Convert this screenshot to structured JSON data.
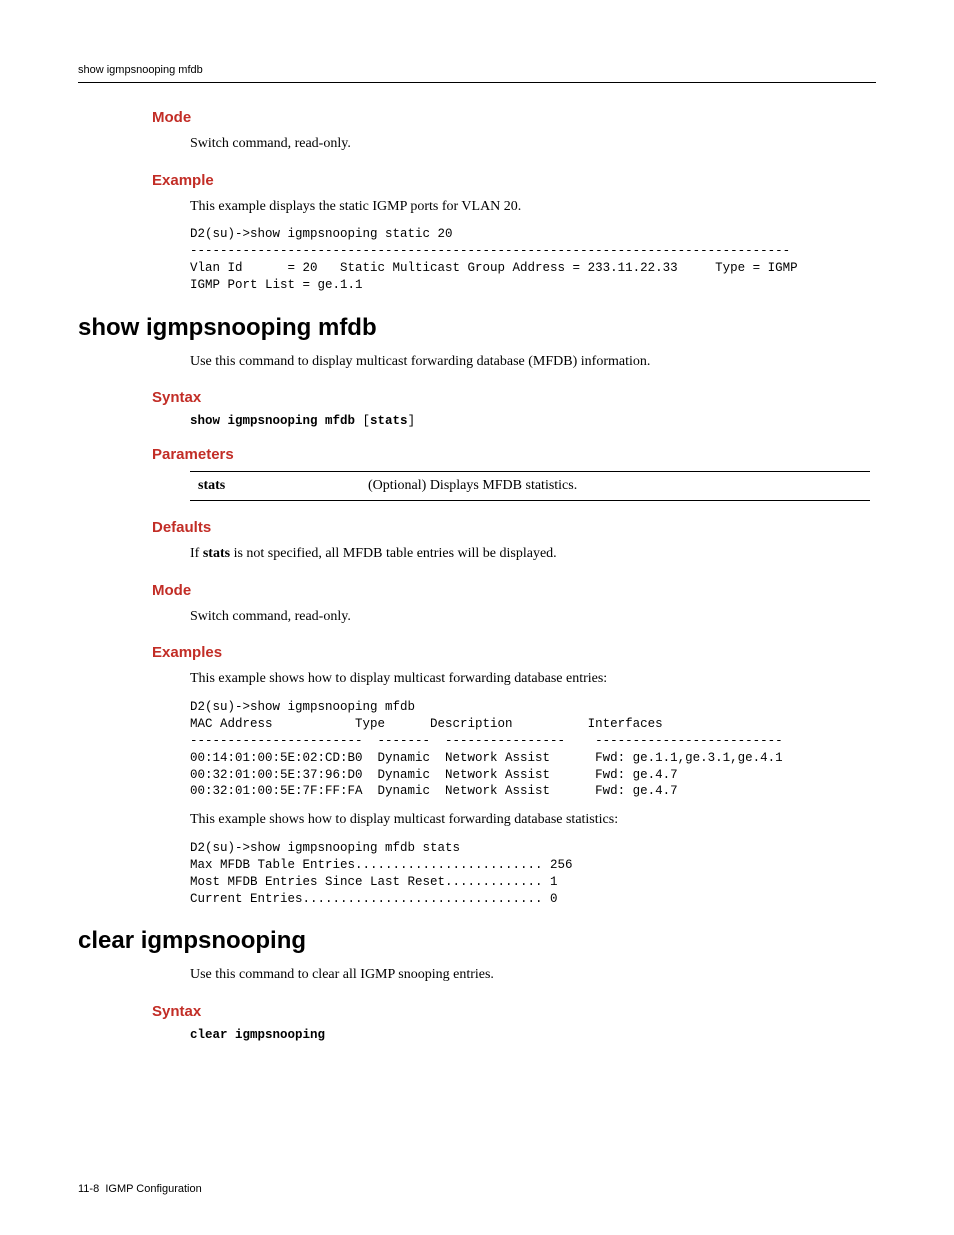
{
  "colors": {
    "heading_red": "#c22d26",
    "text_black": "#000000",
    "background": "#ffffff"
  },
  "fonts": {
    "serif": "Book Antiqua, Palatino, Georgia, serif",
    "sans": "Arial, Helvetica, sans-serif",
    "mono": "Courier New, Courier, monospace",
    "body_size": 14,
    "heading_size": 15,
    "command_heading_size": 24,
    "code_size": 12.5,
    "header_footer_size": 11
  },
  "header": {
    "text": "show igmpsnooping mfdb"
  },
  "section1": {
    "mode_heading": "Mode",
    "mode_text": "Switch command, read-only.",
    "example_heading": "Example",
    "example_text": "This example displays the static IGMP ports for VLAN 20.",
    "example_code": "D2(su)->show igmpsnooping static 20\n--------------------------------------------------------------------------------\nVlan Id      = 20   Static Multicast Group Address = 233.11.22.33     Type = IGMP\nIGMP Port List = ge.1.1"
  },
  "command1": {
    "title": "show igmpsnooping mfdb",
    "description": "Use this command to display multicast forwarding database (MFDB) information.",
    "syntax_heading": "Syntax",
    "syntax_bold": "show igmpsnooping mfdb ",
    "syntax_bracket_open": "[",
    "syntax_param": "stats",
    "syntax_bracket_close": "]",
    "parameters_heading": "Parameters",
    "param_name": "stats",
    "param_desc": "(Optional) Displays MFDB statistics.",
    "defaults_heading": "Defaults",
    "defaults_prefix": "If ",
    "defaults_bold": "stats",
    "defaults_suffix": " is not specified, all MFDB table entries will be displayed.",
    "mode_heading": "Mode",
    "mode_text": "Switch command, read-only.",
    "examples_heading": "Examples",
    "examples_text1": "This example shows how to display multicast forwarding database entries:",
    "examples_code1": "D2(su)->show igmpsnooping mfdb\nMAC Address           Type      Description          Interfaces\n-----------------------  -------  ----------------    -------------------------\n00:14:01:00:5E:02:CD:B0  Dynamic  Network Assist      Fwd: ge.1.1,ge.3.1,ge.4.1\n00:32:01:00:5E:37:96:D0  Dynamic  Network Assist      Fwd: ge.4.7\n00:32:01:00:5E:7F:FF:FA  Dynamic  Network Assist      Fwd: ge.4.7",
    "examples_text2": "This example shows how to display multicast forwarding database statistics:",
    "examples_code2": "D2(su)->show igmpsnooping mfdb stats\nMax MFDB Table Entries......................... 256\nMost MFDB Entries Since Last Reset............. 1\nCurrent Entries................................ 0"
  },
  "command2": {
    "title": "clear igmpsnooping",
    "description": "Use this command to clear all IGMP snooping entries.",
    "syntax_heading": "Syntax",
    "syntax_code": "clear igmpsnooping"
  },
  "footer": {
    "page": "11-8",
    "chapter": "IGMP Configuration"
  }
}
